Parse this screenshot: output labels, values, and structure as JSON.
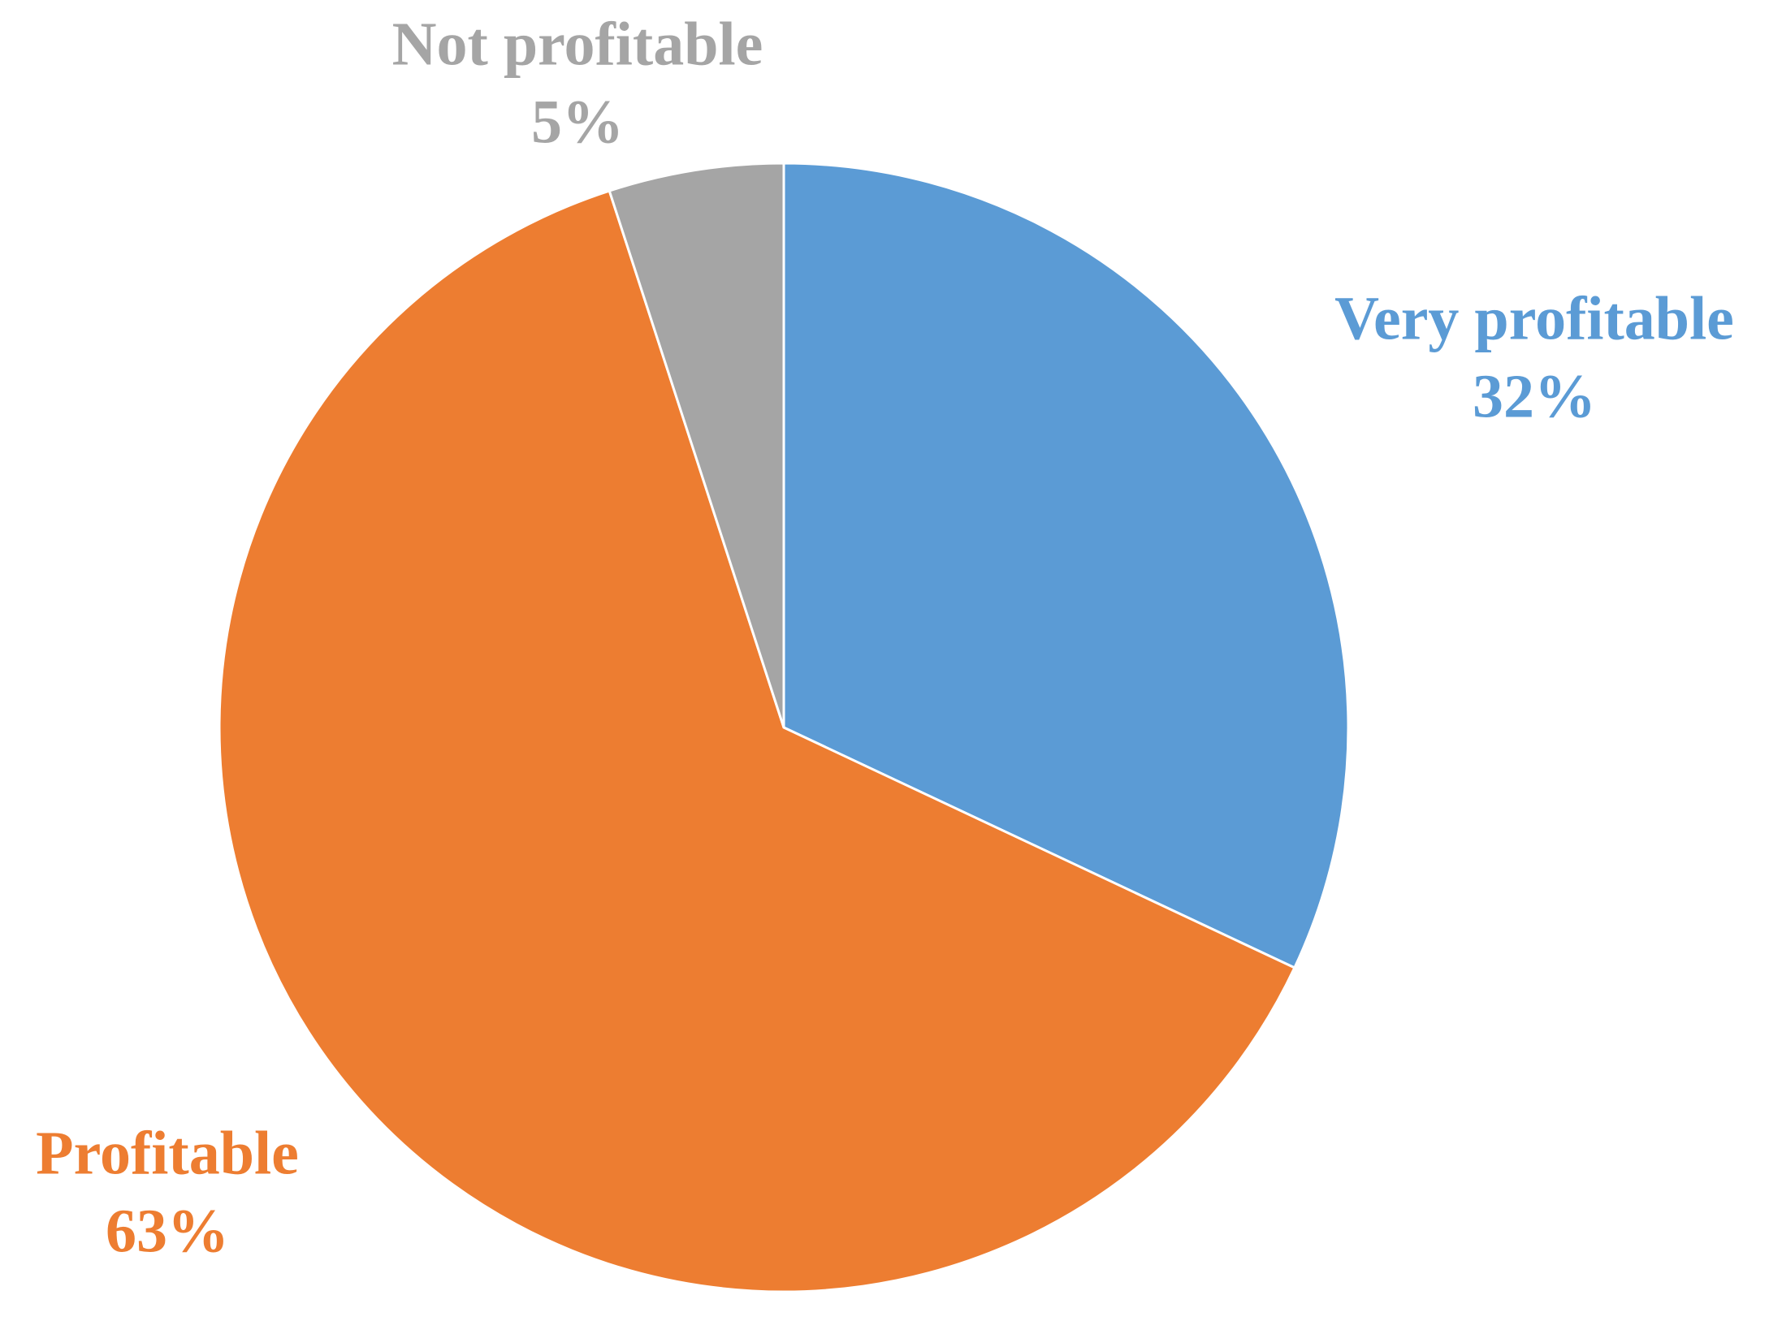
{
  "chart_data": {
    "type": "pie",
    "categories": [
      "Very profitable",
      "Profitable",
      "Not profitable"
    ],
    "values": [
      32,
      63,
      5
    ],
    "value_labels": [
      "32%",
      "63%",
      "5%"
    ],
    "colors": [
      "#5b9bd5",
      "#ed7d31",
      "#a5a5a5"
    ]
  }
}
